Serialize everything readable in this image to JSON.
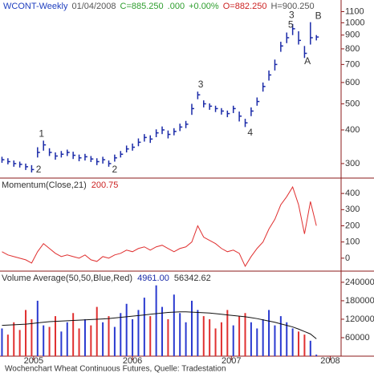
{
  "header": [
    {
      "text": "WCONT-Weekly",
      "color": "#1f3fbf"
    },
    {
      "text": "01/04/2008",
      "color": "#555555"
    },
    {
      "text": "C=885.250",
      "color": "#2e9e2e"
    },
    {
      "text": ".000",
      "color": "#2e9e2e"
    },
    {
      "text": "+0.00%",
      "color": "#2e9e2e"
    },
    {
      "text": "O=882.250",
      "color": "#cc2222"
    },
    {
      "text": "H=900.250",
      "color": "#555555"
    }
  ],
  "footer": "Wochenchart Wheat Continuous Futures, Quelle: Tradestation",
  "chart_data": [
    {
      "type": "ohlc",
      "color": "#1a2aa8",
      "log": true,
      "xlim": [
        2004.66,
        2008.11
      ],
      "ylim": [
        265,
        1150
      ],
      "yticks": [
        300,
        400,
        500,
        600,
        700,
        800,
        900,
        1000,
        1100
      ],
      "x": [
        2004.68,
        2004.74,
        2004.8,
        2004.86,
        2004.92,
        2004.98,
        2005.04,
        2005.1,
        2005.16,
        2005.22,
        2005.28,
        2005.34,
        2005.4,
        2005.46,
        2005.52,
        2005.58,
        2005.64,
        2005.7,
        2005.76,
        2005.82,
        2005.88,
        2005.94,
        2006,
        2006.06,
        2006.12,
        2006.18,
        2006.24,
        2006.3,
        2006.36,
        2006.42,
        2006.48,
        2006.54,
        2006.6,
        2006.66,
        2006.72,
        2006.78,
        2006.84,
        2006.9,
        2006.96,
        2007.02,
        2007.08,
        2007.14,
        2007.2,
        2007.26,
        2007.32,
        2007.38,
        2007.44,
        2007.5,
        2007.56,
        2007.62,
        2007.68,
        2007.74,
        2007.8,
        2007.86
      ],
      "high": [
        318,
        314,
        308,
        305,
        300,
        296,
        345,
        365,
        342,
        330,
        334,
        338,
        332,
        324,
        326,
        320,
        314,
        318,
        308,
        324,
        334,
        350,
        356,
        372,
        386,
        382,
        402,
        412,
        398,
        406,
        422,
        432,
        500,
        555,
        515,
        502,
        492,
        482,
        472,
        492,
        468,
        440,
        485,
        528,
        600,
        665,
        730,
        850,
        920,
        990,
        930,
        820,
        1005,
        900.25
      ],
      "low": [
        302,
        298,
        292,
        290,
        284,
        278,
        316,
        335,
        320,
        310,
        316,
        320,
        312,
        306,
        308,
        304,
        296,
        300,
        292,
        305,
        316,
        330,
        335,
        348,
        362,
        358,
        376,
        386,
        372,
        382,
        396,
        406,
        455,
        520,
        485,
        475,
        466,
        456,
        446,
        462,
        430,
        410,
        450,
        492,
        555,
        610,
        665,
        780,
        840,
        900,
        830,
        740,
        830,
        860
      ],
      "close": [
        310,
        305,
        300,
        298,
        292,
        285,
        330,
        352,
        330,
        320,
        325,
        330,
        322,
        315,
        318,
        312,
        305,
        310,
        300,
        315,
        325,
        340,
        345,
        360,
        375,
        370,
        390,
        400,
        385,
        395,
        410,
        420,
        480,
        540,
        500,
        490,
        480,
        470,
        460,
        480,
        450,
        425,
        470,
        510,
        580,
        640,
        700,
        820,
        880,
        950,
        860,
        770,
        880,
        885.25
      ],
      "annotations": [
        {
          "text": "2",
          "x": 2005.05,
          "y": 284,
          "color": "#e02020"
        },
        {
          "text": "1",
          "x": 2005.08,
          "y": 386,
          "color": "#1e8c1e"
        },
        {
          "text": "2",
          "x": 2005.82,
          "y": 284,
          "color": "#1e8c1e"
        },
        {
          "text": "3",
          "x": 2006.69,
          "y": 588,
          "color": "#1e8c1e"
        },
        {
          "text": "4",
          "x": 2007.19,
          "y": 389,
          "color": "#1e8c1e"
        },
        {
          "text": "5",
          "x": 2007.6,
          "y": 980,
          "color": "#1e8c1e"
        },
        {
          "text": "3",
          "x": 2007.61,
          "y": 1063,
          "color": "#e02020"
        },
        {
          "text": "B",
          "x": 2007.88,
          "y": 1056,
          "color": "#1e8c1e"
        },
        {
          "text": "A",
          "x": 2007.77,
          "y": 717,
          "color": "#1e8c1e"
        }
      ]
    },
    {
      "type": "line",
      "title_parts": [
        {
          "text": "Momentum(Close,21)",
          "color": "#333333"
        },
        {
          "text": "200.75",
          "color": "#cc2222"
        }
      ],
      "xlim": [
        2004.66,
        2008.11
      ],
      "ylim": [
        -80,
        485
      ],
      "yticks": [
        0,
        100,
        200,
        300,
        400
      ],
      "series": [
        {
          "color": "#e03030",
          "values": [
            40,
            20,
            10,
            0,
            -10,
            -30,
            40,
            90,
            60,
            30,
            10,
            20,
            10,
            0,
            20,
            -10,
            -20,
            10,
            0,
            20,
            30,
            50,
            40,
            60,
            70,
            50,
            70,
            80,
            60,
            40,
            60,
            70,
            100,
            200,
            130,
            110,
            90,
            60,
            40,
            50,
            30,
            -50,
            10,
            60,
            100,
            180,
            240,
            330,
            380,
            440,
            330,
            150,
            350,
            200.75
          ]
        }
      ]
    },
    {
      "type": "bar",
      "title_parts": [
        {
          "text": "Volume Average(50,50,Blue,Red)",
          "color": "#333333"
        },
        {
          "text": "4961.00",
          "color": "#1a2aa8"
        },
        {
          "text": "56342.62",
          "color": "#333333"
        }
      ],
      "xlim": [
        2004.66,
        2008.11
      ],
      "xticks": [
        2005,
        2006,
        2007,
        2008
      ],
      "ylim": [
        0,
        271000
      ],
      "yticks": [
        60000,
        120000,
        180000,
        240000
      ],
      "up_color": "#2a3ad0",
      "down_color": "#e03030",
      "series": [
        {
          "values": [
            90000,
            70000,
            110000,
            85000,
            150000,
            120000,
            180000,
            100000,
            95000,
            130000,
            80000,
            110000,
            140000,
            90000,
            120000,
            100000,
            160000,
            110000,
            130000,
            95000,
            140000,
            170000,
            120000,
            150000,
            190000,
            130000,
            230000,
            160000,
            120000,
            200000,
            140000,
            110000,
            180000,
            150000,
            130000,
            120000,
            90000,
            110000,
            150000,
            100000,
            130000,
            140000,
            110000,
            90000,
            120000,
            150000,
            100000,
            130000,
            110000,
            90000,
            80000,
            70000,
            50000,
            4961
          ]
        },
        {
          "color": "#111111",
          "values": [
            100000,
            101000,
            102000,
            103000,
            104000,
            106000,
            108000,
            110000,
            112000,
            113000,
            114000,
            115000,
            116000,
            117000,
            118000,
            119000,
            120000,
            121000,
            122000,
            124000,
            126000,
            128000,
            130000,
            132000,
            134000,
            136000,
            138000,
            140000,
            142000,
            143000,
            144000,
            144000,
            143000,
            142000,
            141000,
            140000,
            138000,
            136000,
            134000,
            132000,
            130000,
            128000,
            125000,
            122000,
            118000,
            114000,
            110000,
            105000,
            100000,
            95000,
            88000,
            80000,
            72000,
            56342.62
          ]
        }
      ]
    }
  ]
}
